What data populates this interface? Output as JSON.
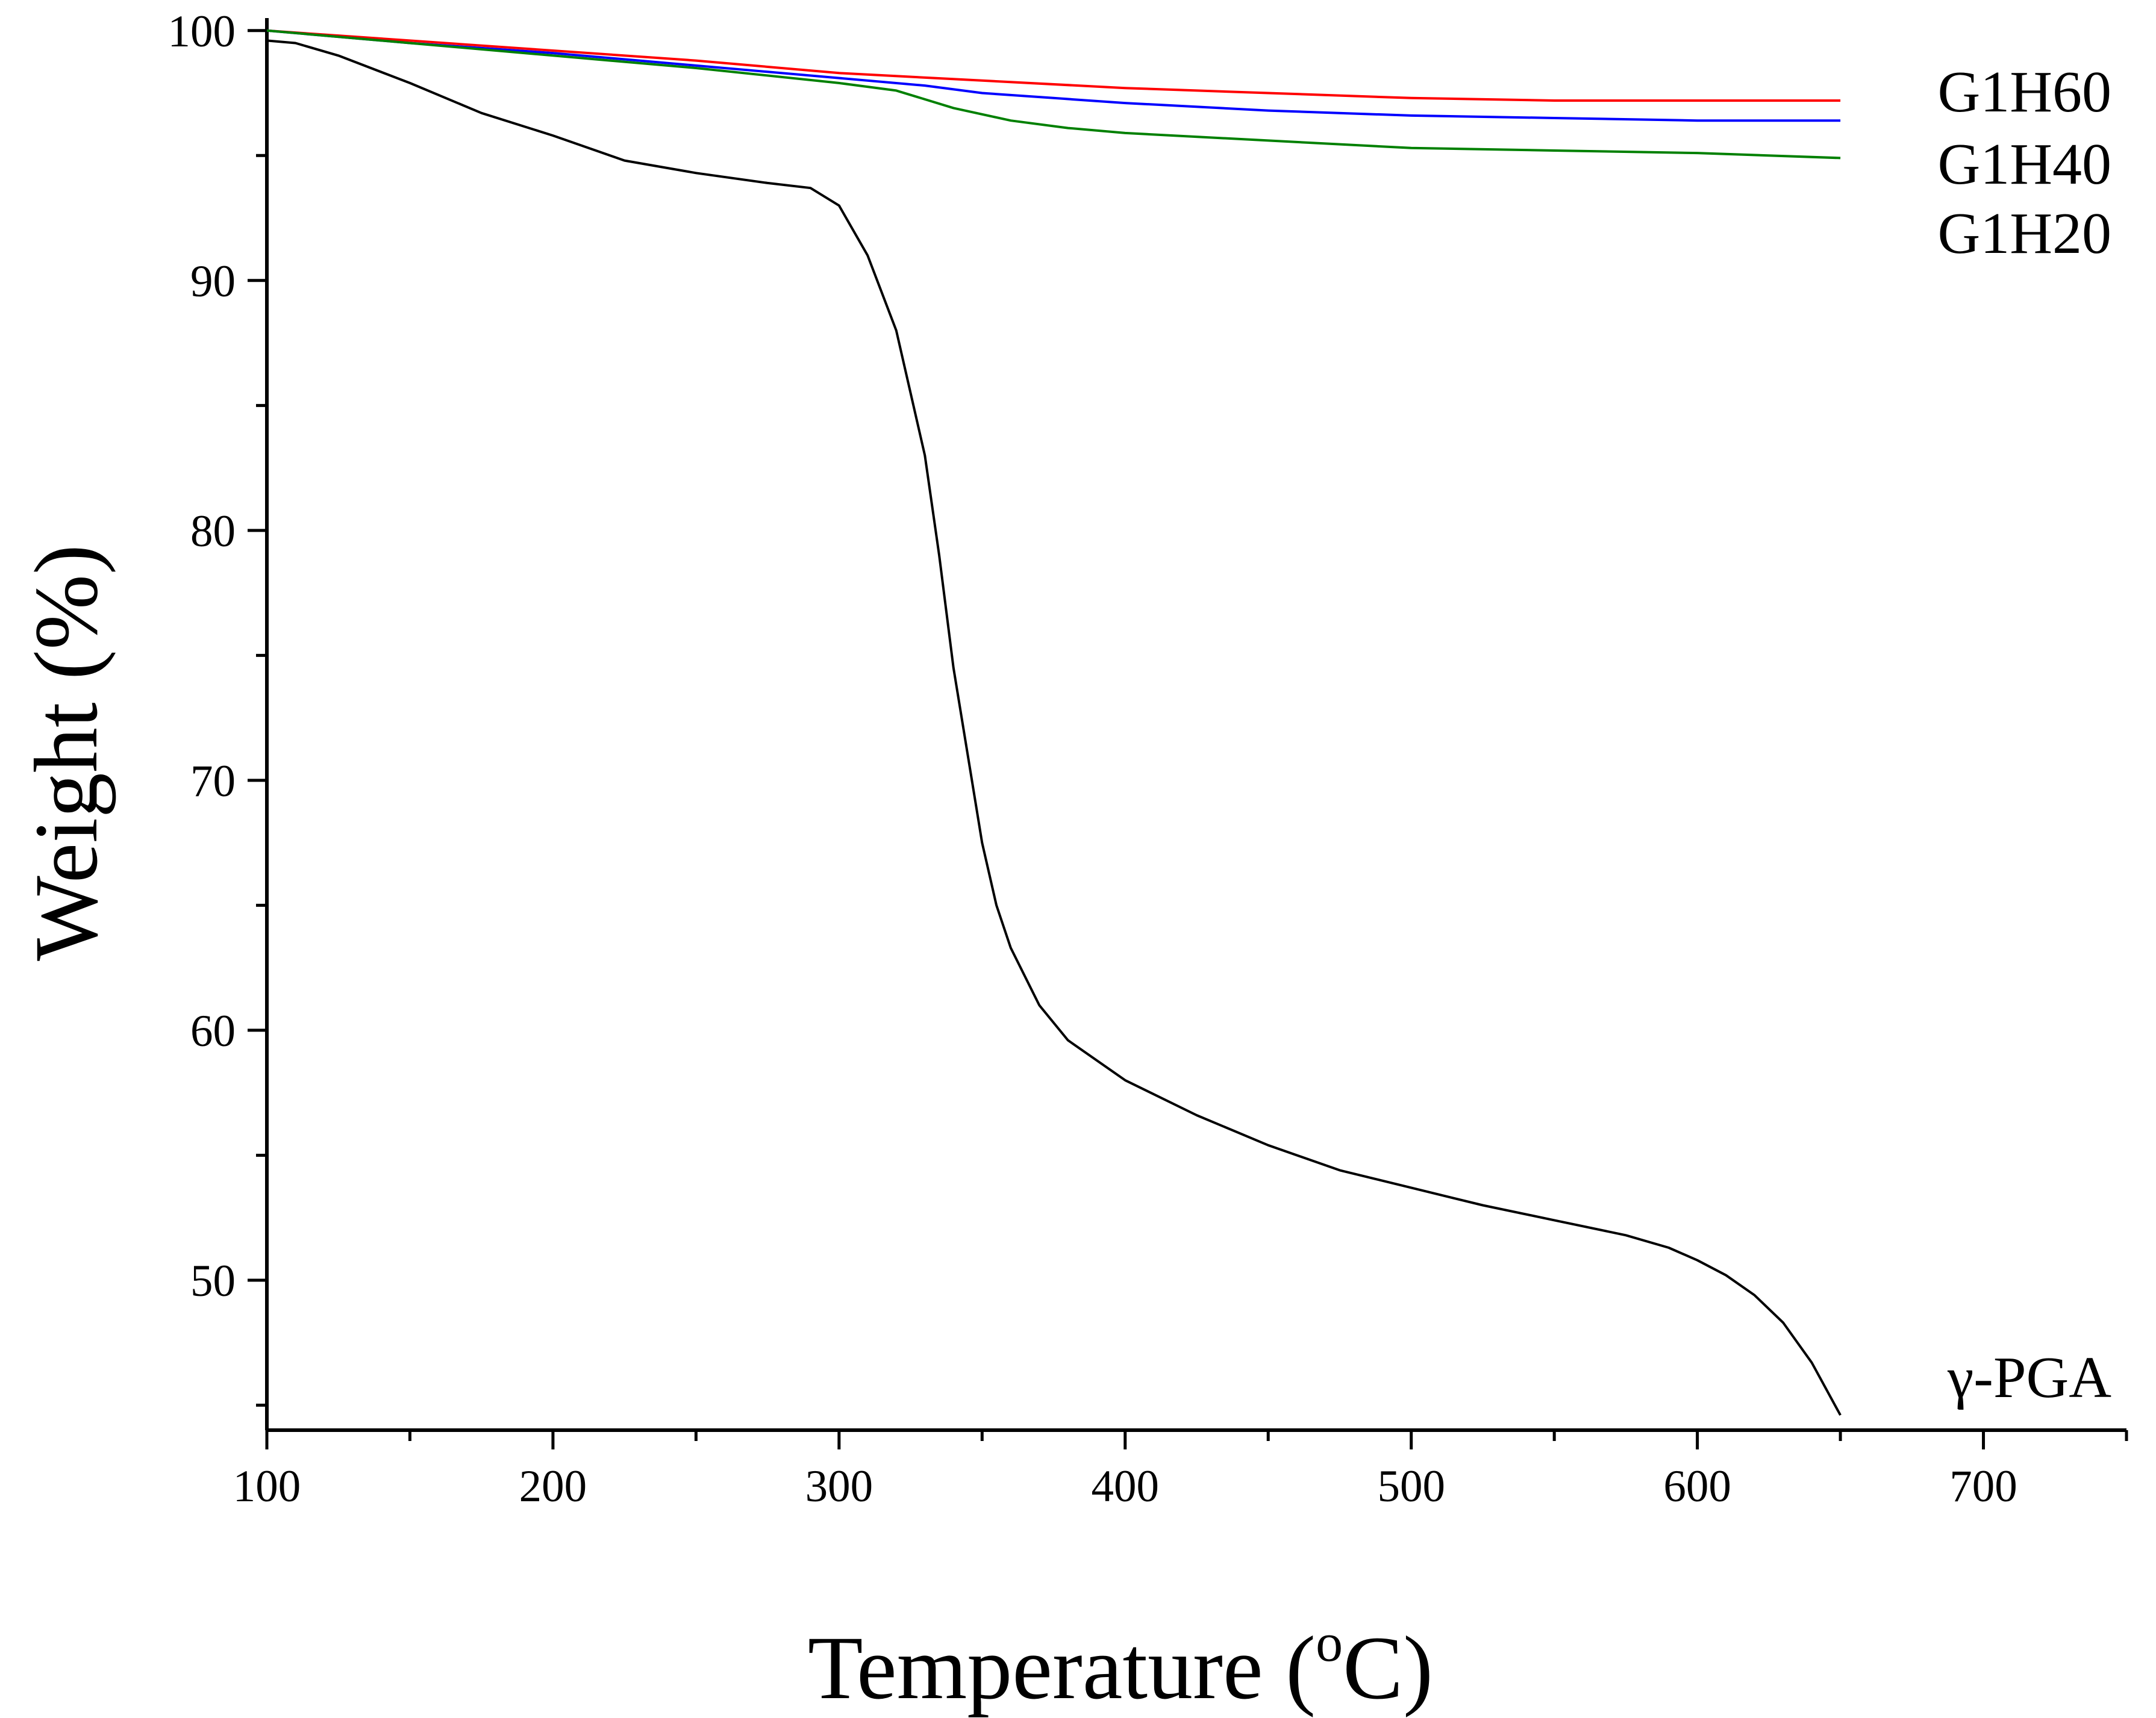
{
  "chart_data": {
    "type": "line",
    "title": "",
    "xlabel": "Temperature (",
    "xlabel_sup": "o",
    "xlabel_end": "C)",
    "ylabel": "Weight (%)",
    "xlim": [
      100,
      750
    ],
    "ylim": [
      44,
      100.5
    ],
    "x_ticks": [
      100,
      200,
      300,
      400,
      500,
      600,
      700
    ],
    "y_ticks": [
      50,
      60,
      70,
      80,
      90,
      100
    ],
    "x_minor_ticks": [
      150,
      250,
      350,
      450,
      550,
      650,
      750
    ],
    "y_minor_ticks": [
      45,
      55,
      65,
      75,
      85,
      95
    ],
    "series": [
      {
        "name": "G1H60",
        "color": "#ff0000",
        "x": [
          100,
          150,
          200,
          250,
          300,
          350,
          400,
          450,
          500,
          550,
          600,
          650
        ],
        "y": [
          100.0,
          99.6,
          99.2,
          98.8,
          98.3,
          98.0,
          97.7,
          97.5,
          97.3,
          97.2,
          97.2,
          97.2
        ]
      },
      {
        "name": "G1H40",
        "color": "#0000ff",
        "x": [
          100,
          150,
          200,
          250,
          300,
          330,
          350,
          375,
          400,
          450,
          500,
          550,
          600,
          650
        ],
        "y": [
          100.0,
          99.5,
          99.1,
          98.6,
          98.1,
          97.8,
          97.5,
          97.3,
          97.1,
          96.8,
          96.6,
          96.5,
          96.4,
          96.4
        ]
      },
      {
        "name": "G1H20",
        "color": "#008000",
        "x": [
          100,
          150,
          200,
          250,
          300,
          320,
          340,
          360,
          380,
          400,
          450,
          500,
          550,
          600,
          650
        ],
        "y": [
          100.0,
          99.5,
          99.0,
          98.5,
          97.9,
          97.6,
          96.9,
          96.4,
          96.1,
          95.9,
          95.6,
          95.3,
          95.2,
          95.1,
          94.9
        ]
      },
      {
        "name": "γ-PGA",
        "color": "#000000",
        "x": [
          100,
          110,
          125,
          150,
          175,
          200,
          225,
          250,
          275,
          290,
          300,
          310,
          320,
          330,
          335,
          340,
          345,
          350,
          355,
          360,
          370,
          380,
          400,
          425,
          450,
          475,
          500,
          525,
          550,
          575,
          590,
          600,
          610,
          620,
          630,
          640,
          650
        ],
        "y": [
          99.6,
          99.5,
          99.0,
          97.9,
          96.7,
          95.8,
          94.8,
          94.3,
          93.9,
          93.7,
          93.0,
          91.0,
          88.0,
          83.0,
          79.0,
          74.5,
          71.0,
          67.5,
          65.0,
          63.3,
          61.0,
          59.6,
          58.0,
          56.6,
          55.4,
          54.4,
          53.7,
          53.0,
          52.4,
          51.8,
          51.3,
          50.8,
          50.2,
          49.4,
          48.3,
          46.7,
          44.6
        ]
      }
    ],
    "legend_placement": "right-end labels"
  }
}
